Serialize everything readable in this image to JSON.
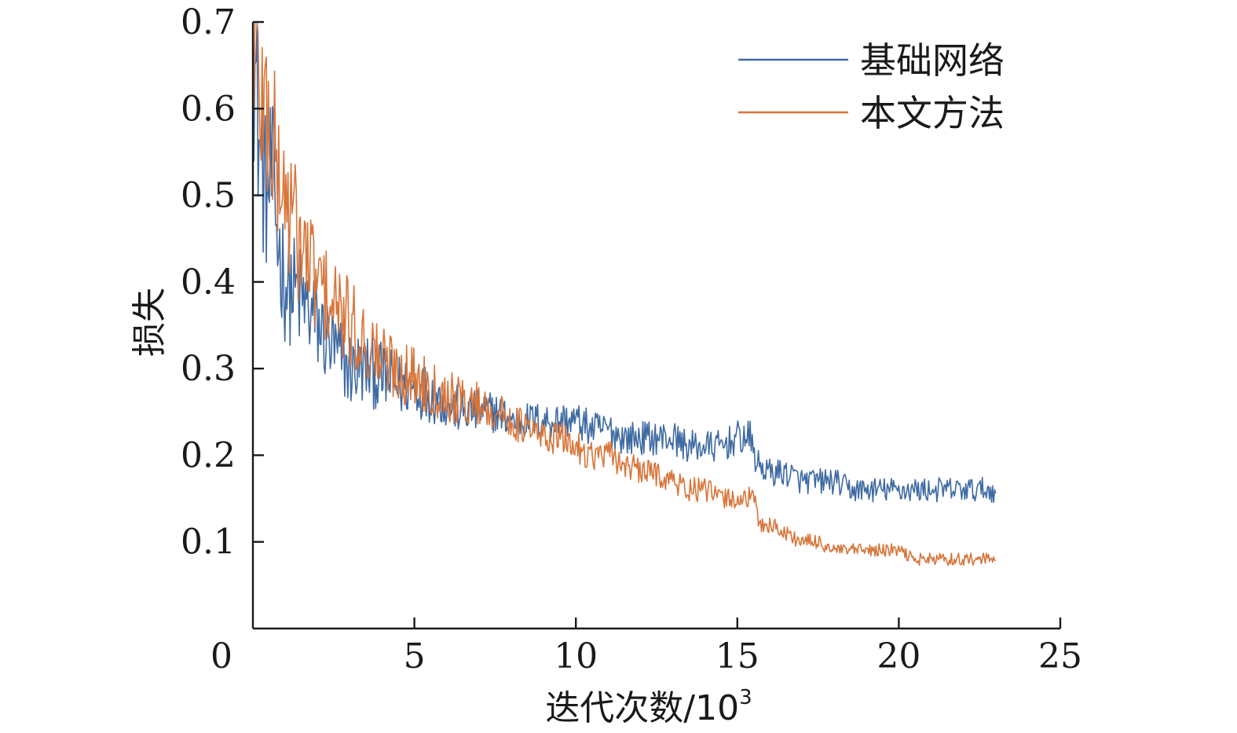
{
  "chart_data": {
    "type": "line",
    "title": "",
    "xlabel": "迭代次数/10",
    "xlabel_sup": "3",
    "ylabel": "损失",
    "xlim": [
      0,
      25
    ],
    "ylim": [
      0,
      0.7
    ],
    "xticks": [
      0,
      5,
      10,
      15,
      20,
      25
    ],
    "xtick_labels": [
      "0",
      "5",
      "10",
      "15",
      "20",
      "25"
    ],
    "yticks": [
      0.1,
      0.2,
      0.3,
      0.4,
      0.5,
      0.6,
      0.7
    ],
    "ytick_labels": [
      "0.1",
      "0.2",
      "0.3",
      "0.4",
      "0.5",
      "0.6",
      "0.7"
    ],
    "grid": false,
    "legend_position": "top-right",
    "series": [
      {
        "name": "基础网络",
        "color": "#3e6aa3",
        "x": [
          0,
          0.2,
          0.4,
          0.6,
          0.8,
          1.0,
          1.5,
          2.0,
          2.5,
          3.0,
          3.5,
          4.0,
          4.5,
          5.0,
          5.5,
          6.0,
          6.5,
          7.0,
          7.5,
          8.0,
          8.5,
          9.0,
          9.5,
          10.0,
          10.5,
          11.0,
          11.5,
          12.0,
          12.5,
          13.0,
          13.5,
          14.0,
          14.5,
          15.0,
          15.4,
          15.6,
          16.0,
          16.5,
          17.0,
          17.5,
          18.0,
          18.5,
          19.0,
          19.5,
          20.0,
          20.5,
          21.0,
          21.5,
          22.0,
          22.5,
          23.0
        ],
        "y": [
          0.68,
          0.56,
          0.5,
          0.52,
          0.44,
          0.4,
          0.38,
          0.35,
          0.32,
          0.3,
          0.3,
          0.29,
          0.28,
          0.28,
          0.27,
          0.26,
          0.25,
          0.25,
          0.25,
          0.24,
          0.24,
          0.24,
          0.24,
          0.24,
          0.23,
          0.23,
          0.22,
          0.22,
          0.22,
          0.22,
          0.21,
          0.21,
          0.21,
          0.22,
          0.22,
          0.19,
          0.18,
          0.18,
          0.17,
          0.17,
          0.17,
          0.16,
          0.16,
          0.16,
          0.16,
          0.16,
          0.16,
          0.16,
          0.16,
          0.16,
          0.16
        ]
      },
      {
        "name": "本文方法",
        "color": "#d8753a",
        "x": [
          0,
          0.2,
          0.4,
          0.6,
          0.8,
          1.0,
          1.5,
          2.0,
          2.5,
          3.0,
          3.5,
          4.0,
          4.5,
          5.0,
          5.5,
          6.0,
          6.5,
          7.0,
          7.5,
          8.0,
          8.5,
          9.0,
          9.5,
          10.0,
          10.5,
          11.0,
          11.5,
          12.0,
          12.5,
          13.0,
          13.5,
          14.0,
          14.5,
          15.0,
          15.5,
          15.7,
          16.0,
          16.5,
          17.0,
          17.5,
          18.0,
          18.5,
          19.0,
          19.5,
          20.0,
          20.5,
          21.0,
          21.5,
          22.0,
          22.5,
          23.0
        ],
        "y": [
          0.7,
          0.62,
          0.6,
          0.56,
          0.52,
          0.5,
          0.44,
          0.4,
          0.37,
          0.35,
          0.33,
          0.31,
          0.3,
          0.29,
          0.28,
          0.27,
          0.26,
          0.26,
          0.25,
          0.24,
          0.23,
          0.22,
          0.22,
          0.21,
          0.2,
          0.2,
          0.19,
          0.18,
          0.18,
          0.17,
          0.16,
          0.16,
          0.15,
          0.15,
          0.15,
          0.12,
          0.12,
          0.11,
          0.1,
          0.1,
          0.09,
          0.09,
          0.09,
          0.09,
          0.09,
          0.08,
          0.08,
          0.08,
          0.08,
          0.08,
          0.08
        ]
      }
    ]
  }
}
